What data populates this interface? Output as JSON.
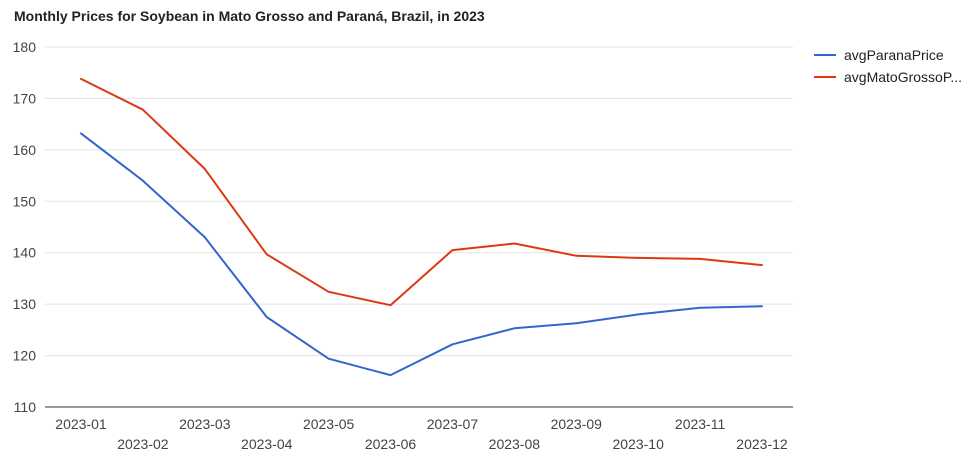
{
  "chart_data": {
    "type": "line",
    "title": "Monthly Prices for Soybean in Mato Grosso and Paraná, Brazil, in 2023",
    "xlabel": "",
    "ylabel": "",
    "categories": [
      "2023-01",
      "2023-02",
      "2023-03",
      "2023-04",
      "2023-05",
      "2023-06",
      "2023-07",
      "2023-08",
      "2023-09",
      "2023-10",
      "2023-11",
      "2023-12"
    ],
    "ylim": [
      110,
      180
    ],
    "yticks": [
      110,
      120,
      130,
      140,
      150,
      160,
      170,
      180
    ],
    "grid": true,
    "legend_position": "right",
    "series": [
      {
        "name": "avgParanaPrice",
        "legend_label": "avgParanaPrice",
        "color": "#3366cc",
        "values": [
          163.2,
          154.0,
          143.0,
          127.5,
          119.4,
          116.2,
          122.2,
          125.3,
          126.3,
          128.0,
          129.3,
          129.6
        ]
      },
      {
        "name": "avgMatoGrossoPrice",
        "legend_label": "avgMatoGrossoP...",
        "color": "#dc3912",
        "values": [
          173.8,
          167.8,
          156.3,
          139.7,
          132.4,
          129.8,
          140.5,
          141.8,
          139.4,
          139.0,
          138.8,
          137.6
        ]
      }
    ]
  }
}
